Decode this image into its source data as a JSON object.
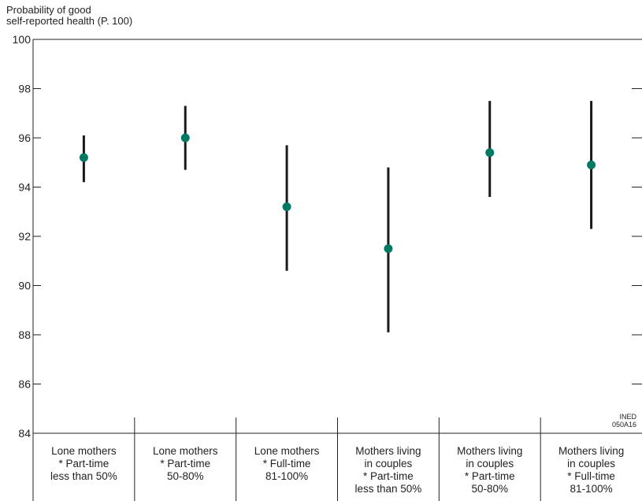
{
  "chart_data": {
    "type": "scatter",
    "ylabel_lines": [
      "Probability of good",
      "self-reported health (P. 100)"
    ],
    "ylim": [
      84,
      100
    ],
    "y_ticks": [
      84,
      86,
      88,
      90,
      92,
      94,
      96,
      98,
      100
    ],
    "y_tick_labels": [
      "84",
      "86",
      "88",
      "90",
      "92",
      "94",
      "96",
      "98",
      "100"
    ],
    "categories": [
      [
        "Lone mothers",
        "* Part-time",
        "less than 50%"
      ],
      [
        "Lone mothers",
        "* Part-time",
        "50-80%"
      ],
      [
        "Lone mothers",
        "* Full-time",
        "81-100%"
      ],
      [
        "Mothers living",
        "in couples",
        "* Part-time",
        "less than 50%"
      ],
      [
        "Mothers living",
        "in couples",
        "* Part-time",
        "50-80%"
      ],
      [
        "Mothers living",
        "in couples",
        "* Full-time",
        "81-100%"
      ]
    ],
    "values": [
      95.2,
      96.0,
      93.2,
      91.5,
      95.4,
      94.9
    ],
    "lower": [
      94.2,
      94.7,
      90.6,
      88.1,
      93.6,
      92.3
    ],
    "upper": [
      96.1,
      97.3,
      95.7,
      94.8,
      97.5,
      97.5
    ],
    "point_color": "#007a63",
    "bar_color": "#1a1a1a",
    "stamp": [
      "INED",
      "050A16"
    ]
  }
}
